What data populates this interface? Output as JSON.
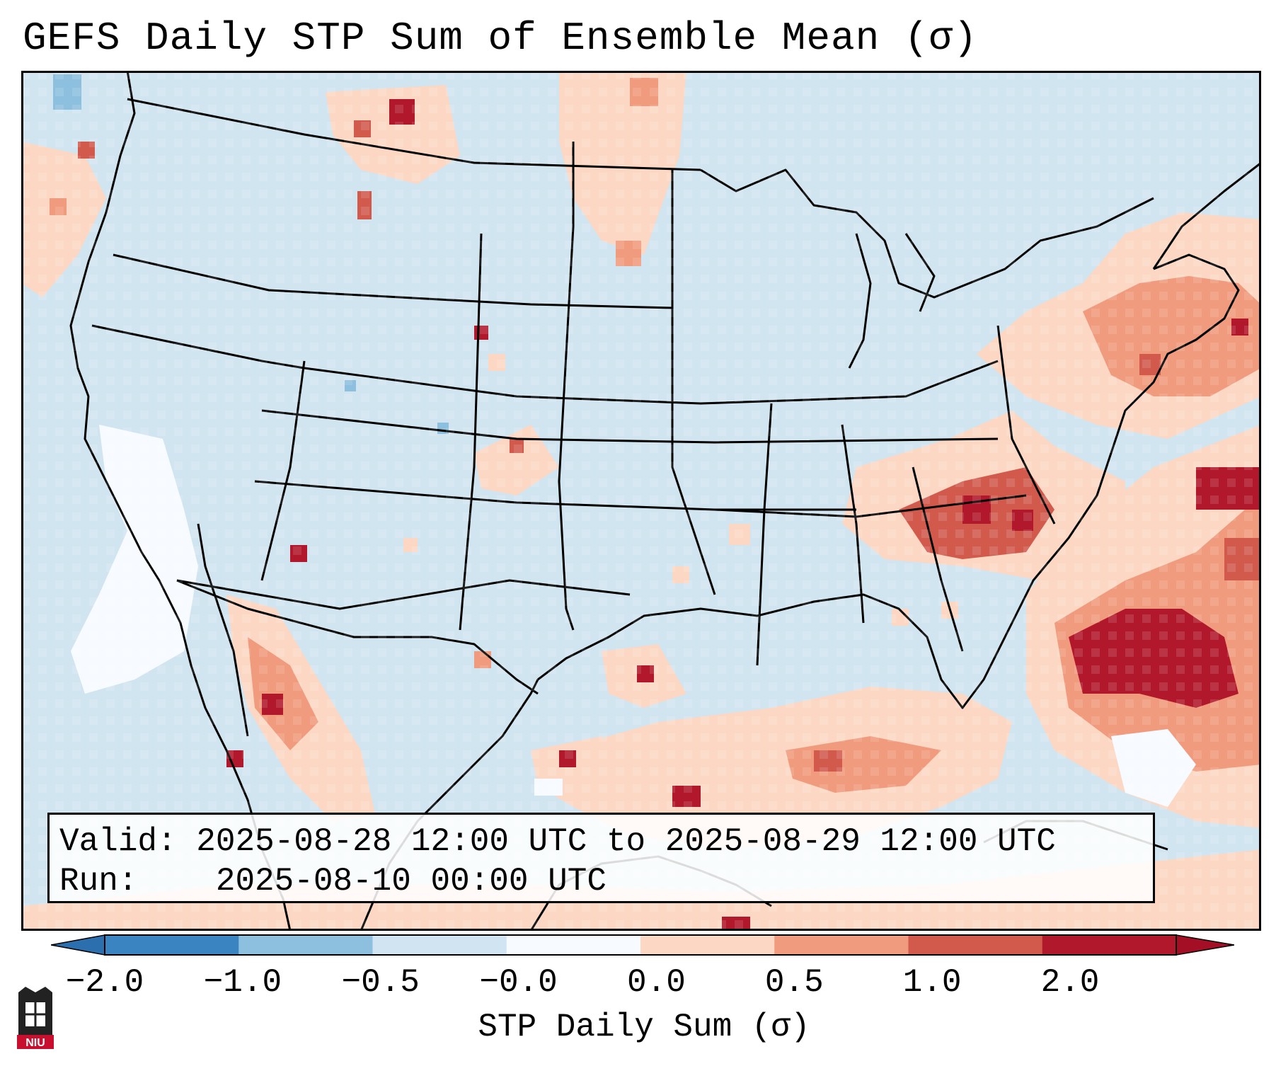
{
  "title": "GEFS Daily STP Sum of Ensemble Mean (σ)",
  "info": {
    "valid_label": "Valid:",
    "valid_value": "2025-08-28 12:00 UTC to 2025-08-29 12:00 UTC",
    "run_label": "Run:",
    "run_value": "2025-08-10 00:00 UTC"
  },
  "colorbar": {
    "label": "STP Daily Sum (σ)",
    "ticks": [
      "−2.0",
      "−1.0",
      "−0.5",
      "−0.0",
      "0.0",
      "0.5",
      "1.0",
      "2.0"
    ],
    "colors": [
      "#3a85c1",
      "#8cc0de",
      "#d0e5f1",
      "#f7fbff",
      "#fcd7c3",
      "#f09b7d",
      "#d25a4d",
      "#b2182b"
    ],
    "extend": "both"
  },
  "map": {
    "background_color": "#d1e5f0",
    "hotspots": [
      {
        "name": "southeast-atlantic-max",
        "color": "#b2182b"
      },
      {
        "name": "virginia-carolinas-max",
        "color": "#d25a4d"
      },
      {
        "name": "new-england-max",
        "color": "#f09b7d"
      },
      {
        "name": "gulf-of-mexico-positive",
        "color": "#f09b7d"
      },
      {
        "name": "mexico-west-coast-positive",
        "color": "#d25a4d"
      }
    ]
  },
  "logo": {
    "text": "NIU"
  }
}
